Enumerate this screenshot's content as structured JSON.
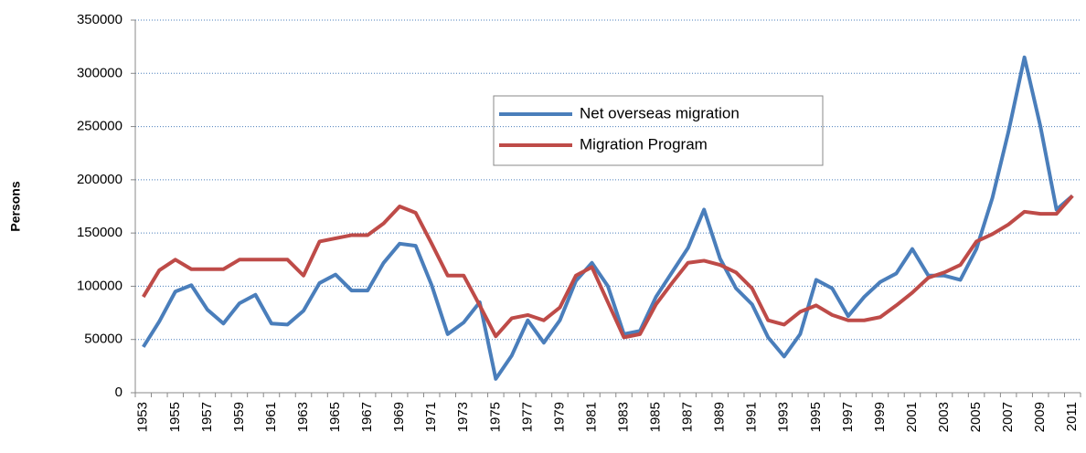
{
  "chart_data": {
    "type": "line",
    "y_label": "Persons",
    "categories": [
      "1953",
      null,
      "1955",
      null,
      "1957",
      null,
      "1959",
      null,
      "1961",
      null,
      "1963",
      null,
      "1965",
      null,
      "1967",
      null,
      "1969",
      null,
      "1971",
      null,
      "1973",
      null,
      "1975",
      null,
      "1977",
      null,
      "1979",
      null,
      "1981",
      null,
      "1983",
      null,
      "1985",
      null,
      "1987",
      null,
      "1989",
      null,
      "1991",
      null,
      "1993",
      null,
      "1995",
      null,
      "1997",
      null,
      "1999",
      null,
      "2001",
      null,
      "2003",
      null,
      "2005",
      null,
      "2007",
      null,
      "2009",
      null,
      "2011"
    ],
    "series": [
      {
        "name": "Net overseas migration",
        "color": "#4a7ebb",
        "values": [
          43000,
          67000,
          95000,
          101000,
          78000,
          65000,
          84000,
          92000,
          65000,
          64000,
          77000,
          103000,
          111000,
          96000,
          96000,
          122000,
          140000,
          138000,
          101000,
          55000,
          66000,
          85000,
          13000,
          35000,
          68000,
          47000,
          68000,
          105000,
          122000,
          100000,
          55000,
          58000,
          90000,
          113000,
          136000,
          172000,
          126000,
          98000,
          83000,
          52000,
          34000,
          55000,
          106000,
          98000,
          72000,
          90000,
          104000,
          112000,
          135000,
          110000,
          110000,
          106000,
          135000,
          183000,
          245000,
          315000,
          250000,
          172000,
          185000
        ]
      },
      {
        "name": "Migration Program",
        "color": "#be4b48",
        "values": [
          90000,
          115000,
          125000,
          116000,
          116000,
          116000,
          125000,
          125000,
          125000,
          125000,
          110000,
          142000,
          145000,
          148000,
          148000,
          159000,
          175000,
          169000,
          140000,
          110000,
          110000,
          82000,
          53000,
          70000,
          73000,
          68000,
          80000,
          110000,
          118000,
          85000,
          52000,
          55000,
          83000,
          103000,
          122000,
          124000,
          120000,
          113000,
          98000,
          68000,
          64000,
          76000,
          82000,
          73000,
          68000,
          68000,
          71000,
          82000,
          94000,
          108000,
          113000,
          120000,
          142000,
          149000,
          158000,
          170000,
          168000,
          168000,
          185000
        ]
      }
    ],
    "ylim": [
      0,
      350000
    ],
    "yticks": [
      0,
      50000,
      100000,
      150000,
      200000,
      250000,
      300000,
      350000
    ],
    "grid": true
  }
}
